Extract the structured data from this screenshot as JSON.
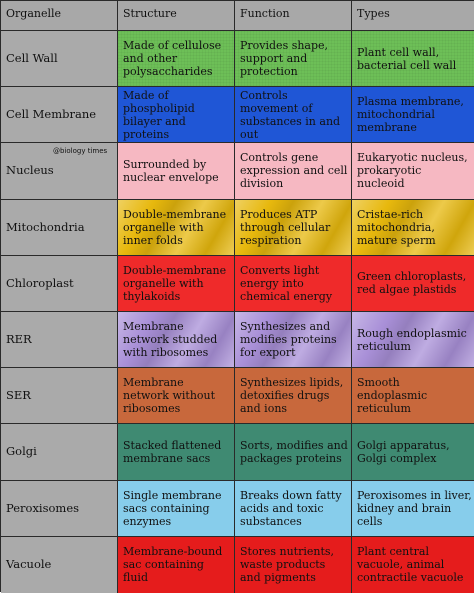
{
  "headers": [
    "Organelle",
    "Structure",
    "Function",
    "Types"
  ],
  "watermark": "@biology times",
  "colors": {
    "green": "#6dbf57",
    "blue": "#1f56d6",
    "pink": "#f6b8c2",
    "yellow": "#e7b80d",
    "red": "#ef2a2a",
    "lavender": "#a990d8",
    "brown": "#c8683c",
    "teal": "#3f8a72",
    "sky": "#87cdeb",
    "vacuole_red": "#e51c1c"
  },
  "rows": [
    {
      "organelle": "Cell Wall",
      "structure": "Made of cellulose and other polysaccharides",
      "function": "Provides shape, support and protection",
      "types": "Plant cell wall, bacterial cell wall"
    },
    {
      "organelle": "Cell Membrane",
      "structure": "Made of phospholipid bilayer and proteins",
      "function": "Controls movement of substances in and out",
      "types": "Plasma membrane, mitochondrial membrane"
    },
    {
      "organelle": "Nucleus",
      "structure": "Surrounded by nuclear envelope",
      "function": "Controls gene expression and cell division",
      "types": "Eukaryotic nucleus, prokaryotic nucleoid"
    },
    {
      "organelle": "Mitochondria",
      "structure": "Double-membrane organelle with inner folds",
      "function": "Produces ATP through cellular respiration",
      "types": "Cristae-rich mitochondria, mature sperm"
    },
    {
      "organelle": "Chloroplast",
      "structure": "Double-membrane organelle with thylakoids",
      "function": "Converts light energy into chemical energy",
      "types": "Green chloroplasts, red algae plastids"
    },
    {
      "organelle": "RER",
      "structure": "Membrane network studded with ribosomes",
      "function": "Synthesizes and modifies proteins for export",
      "types": "Rough endoplasmic reticulum"
    },
    {
      "organelle": "SER",
      "structure": "Membrane network without ribosomes",
      "function": "Synthesizes lipids, detoxifies drugs and ions",
      "types": "Smooth endoplasmic reticulum"
    },
    {
      "organelle": "Golgi",
      "structure": "Stacked flattened membrane sacs",
      "function": "Sorts, modifies and packages proteins",
      "types": "Golgi apparatus, Golgi complex"
    },
    {
      "organelle": "Peroxisomes",
      "structure": "Single membrane sacs containing enzymes",
      "function": "Breaks down fatty acids and toxic substances",
      "types": "Peroxisomes in liver, kidney and brain cells"
    },
    {
      "organelle": "Vacuole",
      "structure": "Membrane-bound sac containing fluid",
      "function": "Stores nutrients, waste products and pigments",
      "types": "Plant central vacuole, animal contractile vacuole"
    }
  ]
}
